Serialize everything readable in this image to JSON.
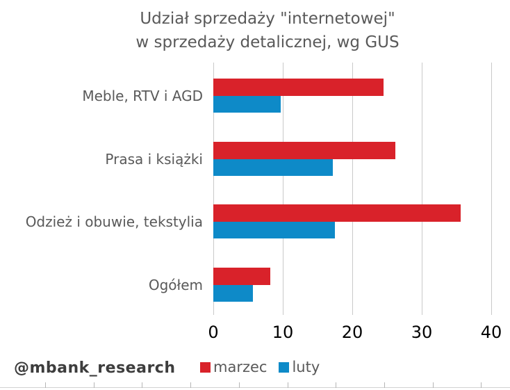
{
  "title": {
    "line1": "Udział sprzedaży \"internetowej\"",
    "line2": "w sprzedaży detalicznej, wg GUS"
  },
  "watermark": "@mbank_research",
  "chart_data": {
    "type": "bar",
    "orientation": "horizontal",
    "title": "Udział sprzedaży \"internetowej\" w sprzedaży detalicznej, wg GUS",
    "categories": [
      "Meble, RTV i AGD",
      "Prasa i książki",
      "Odzież i obuwie, tekstylia",
      "Ogółem"
    ],
    "series": [
      {
        "name": "marzec",
        "color": "#d9222a",
        "values": [
          24.5,
          26.2,
          35.6,
          8.2
        ]
      },
      {
        "name": "luty",
        "color": "#0e8ac8",
        "values": [
          9.7,
          17.2,
          17.5,
          5.7
        ]
      }
    ],
    "xlim": [
      0,
      40
    ],
    "xticks": [
      0,
      10,
      20,
      30,
      40
    ],
    "grid": true,
    "legend_position": "bottom"
  },
  "colors": {
    "text_gray": "#595959",
    "tick_label_color": "#000000",
    "gridline": "#c9c9c9",
    "watermark": "#3d3d3d"
  }
}
